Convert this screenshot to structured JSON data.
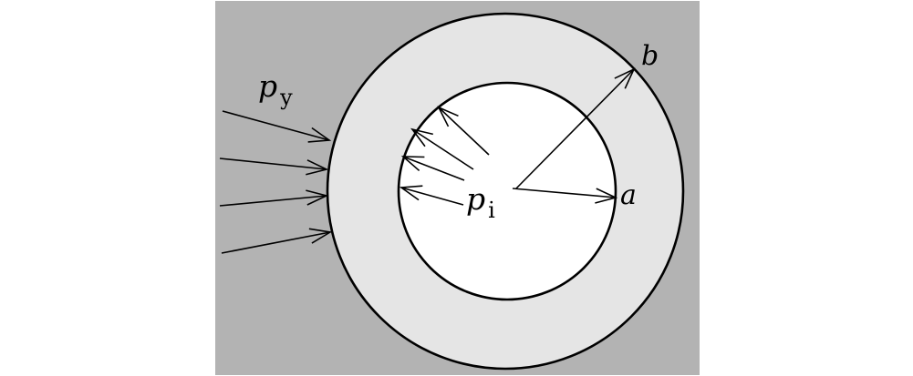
{
  "colors": {
    "page_background": "#ffffff",
    "surrounding_medium": "#b3b3b3",
    "cylinder_wall": "#e5e5e5",
    "bore": "#ffffff",
    "lines": "#000000"
  },
  "labels": {
    "external_pressure": {
      "symbol": "p",
      "subscript": "y"
    },
    "internal_pressure": {
      "symbol": "p",
      "subscript": "i"
    },
    "inner_radius": "a",
    "outer_radius": "b"
  }
}
